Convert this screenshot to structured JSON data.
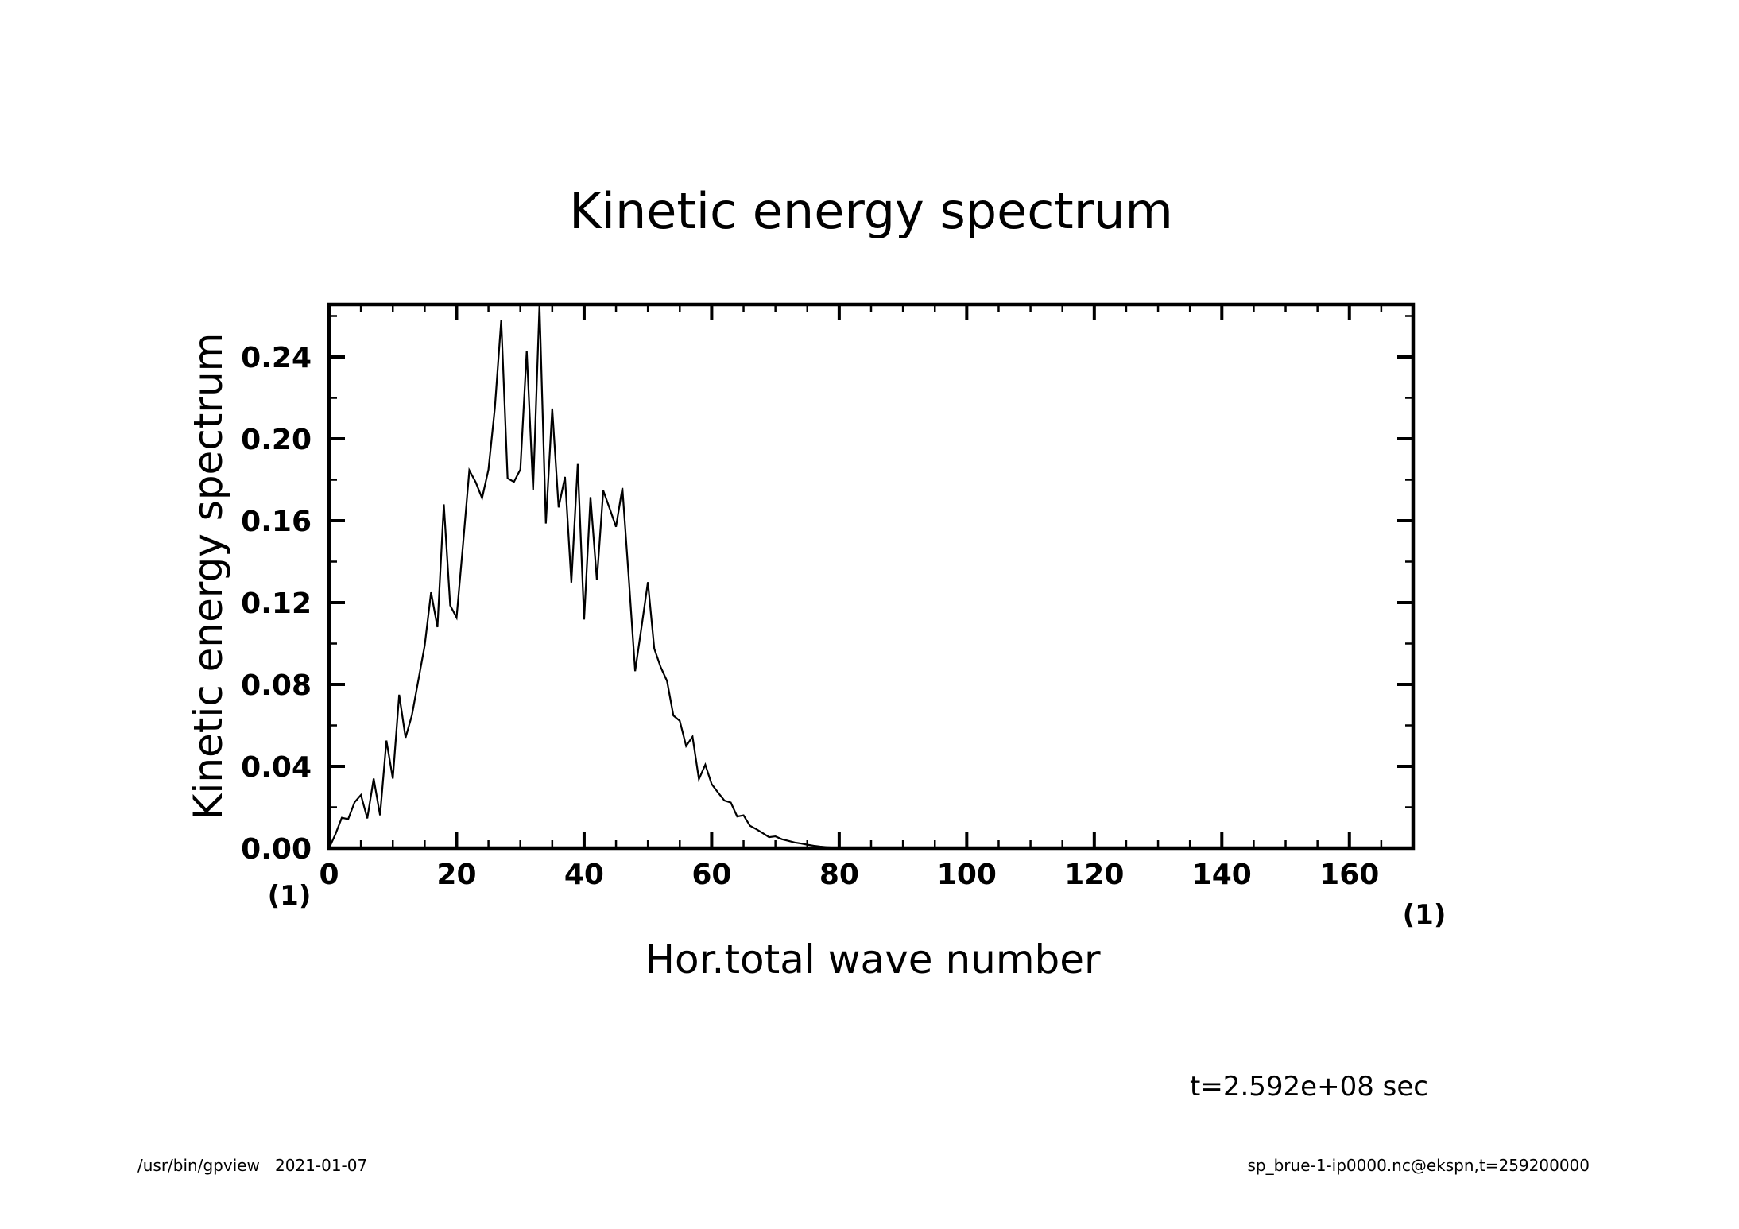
{
  "chart_data": {
    "type": "line",
    "title": "Kinetic energy spectrum",
    "xlabel": "Hor.total wave number",
    "ylabel": "Kinetic energy spectrum",
    "x_unit": "(1)",
    "y_unit": "(1)",
    "xlim": [
      0,
      170
    ],
    "ylim": [
      0,
      0.266
    ],
    "x_ticks": [
      0,
      20,
      40,
      60,
      80,
      100,
      120,
      140,
      160
    ],
    "x_tick_labels": [
      "0",
      "20",
      "40",
      "60",
      "80",
      "100",
      "120",
      "140",
      "160"
    ],
    "x_minor_step": 5,
    "y_ticks": [
      0,
      0.04,
      0.08,
      0.12,
      0.16,
      0.2,
      0.24
    ],
    "y_tick_labels": [
      "0.00",
      "0.04",
      "0.08",
      "0.12",
      "0.16",
      "0.20",
      "0.24"
    ],
    "y_minor_step": 0.02,
    "grid": false,
    "series": [
      {
        "name": "Kinetic energy spectrum",
        "color": "#000000",
        "x_start": 0,
        "x_step": 1,
        "values": [
          0.0,
          0.0068,
          0.0149,
          0.0142,
          0.0224,
          0.026,
          0.0146,
          0.034,
          0.0161,
          0.0526,
          0.034,
          0.075,
          0.054,
          0.065,
          0.082,
          0.099,
          0.125,
          0.108,
          0.168,
          0.1186,
          0.1127,
          0.148,
          0.1846,
          0.1788,
          0.171,
          0.185,
          0.215,
          0.258,
          0.1807,
          0.179,
          0.185,
          0.243,
          0.175,
          0.2655,
          0.1586,
          0.2148,
          0.1665,
          0.1814,
          0.1298,
          0.1877,
          0.1117,
          0.1715,
          0.1309,
          0.1747,
          0.166,
          0.157,
          0.176,
          0.132,
          0.0865,
          0.108,
          0.13,
          0.0975,
          0.0885,
          0.0817,
          0.0648,
          0.0622,
          0.0499,
          0.0545,
          0.0337,
          0.0408,
          0.0313,
          0.0272,
          0.0233,
          0.0223,
          0.0155,
          0.0161,
          0.011,
          0.0093,
          0.0074,
          0.0054,
          0.0058,
          0.0044,
          0.0036,
          0.0028,
          0.0023,
          0.0017,
          0.0012,
          0.0008,
          0.0005,
          0.0003,
          0.0001
        ]
      }
    ]
  },
  "annotations": {
    "time": "t=2.592e+08 sec"
  },
  "footer": {
    "left": "/usr/bin/gpview   2021-01-07",
    "right": "sp_brue-1-ip0000.nc@ekspn,t=259200000"
  }
}
